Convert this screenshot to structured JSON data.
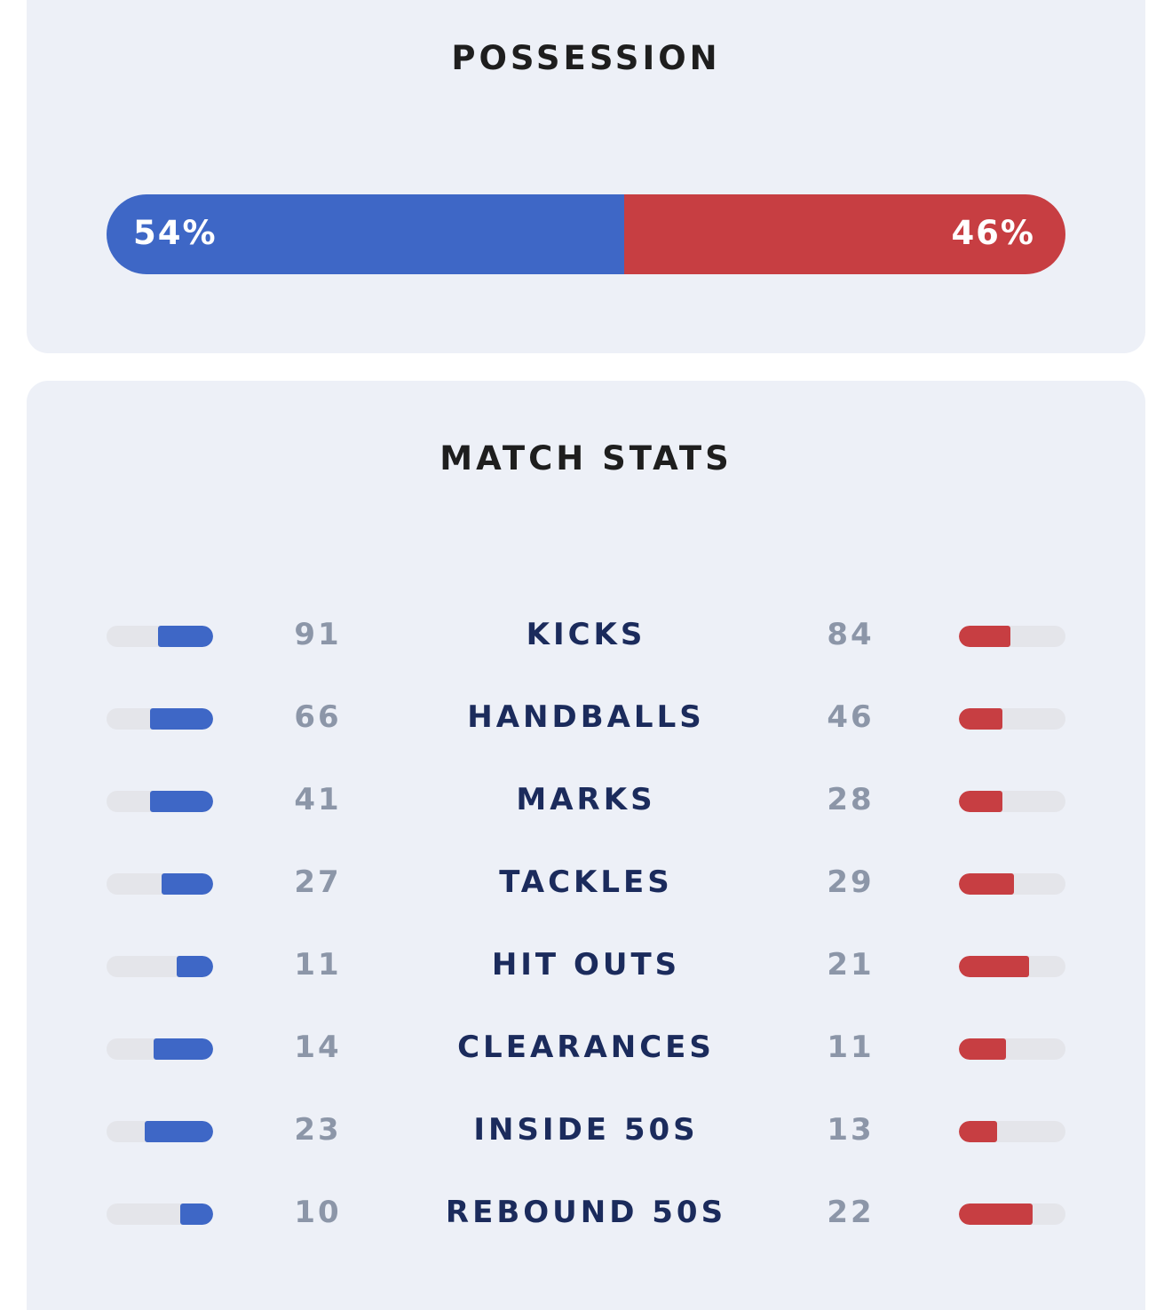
{
  "possession": {
    "title": "POSSESSION",
    "home": {
      "percent": 54,
      "label": "54%",
      "color": "#3e67c6"
    },
    "away": {
      "percent": 46,
      "label": "46%",
      "color": "#c73e42"
    }
  },
  "match_stats": {
    "title": "MATCH STATS",
    "rows": [
      {
        "label": "KICKS",
        "home": "91",
        "away": "84"
      },
      {
        "label": "HANDBALLS",
        "home": "66",
        "away": "46"
      },
      {
        "label": "MARKS",
        "home": "41",
        "away": "28"
      },
      {
        "label": "TACKLES",
        "home": "27",
        "away": "29"
      },
      {
        "label": "HIT OUTS",
        "home": "11",
        "away": "21"
      },
      {
        "label": "CLEARANCES",
        "home": "14",
        "away": "11"
      },
      {
        "label": "INSIDE 50S",
        "home": "23",
        "away": "13"
      },
      {
        "label": "REBOUND 50S",
        "home": "10",
        "away": "22"
      }
    ]
  }
}
